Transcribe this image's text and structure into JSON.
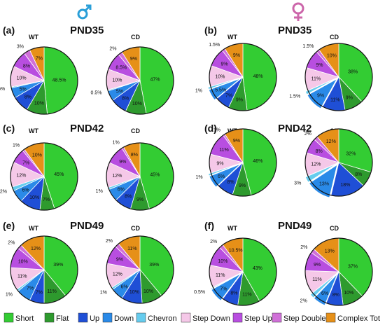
{
  "sex_symbols": {
    "male_color": "#2a9fd8",
    "female_color": "#cc66aa"
  },
  "colors": {
    "Short": "#33cc33",
    "Flat": "#2e9a2e",
    "Up": "#1f4fd6",
    "Down": "#2a8ae8",
    "Chevron": "#66ccee",
    "Step Down": "#f5c8e8",
    "Step Up": "#b84ee0",
    "Step Double": "#d070d8",
    "Complex Tot": "#e69018"
  },
  "legend": [
    "Short",
    "Flat",
    "Up",
    "Down",
    "Chevron",
    "Step Down",
    "Step Up",
    "Step Double",
    "Complex Tot"
  ],
  "chart_data": [
    {
      "type": "pie",
      "panel": "(a)",
      "title": "PND35",
      "sex": "male",
      "groups": [
        {
          "name": "WT",
          "values": [
            {
              "category": "Short",
              "value": 48.5,
              "label": "48.5%"
            },
            {
              "category": "Flat",
              "value": 10,
              "label": "10%"
            },
            {
              "category": "Up",
              "value": 8,
              "label": "8%"
            },
            {
              "category": "Down",
              "value": 5,
              "label": "5%"
            },
            {
              "category": "Chevron",
              "value": 0.5,
              "label": "0.5%"
            },
            {
              "category": "Step Down",
              "value": 10,
              "label": "10%"
            },
            {
              "category": "Step Up",
              "value": 8,
              "label": "8%"
            },
            {
              "category": "Step Double",
              "value": 3,
              "label": "3%"
            },
            {
              "category": "Complex Tot",
              "value": 7,
              "label": "7%"
            }
          ]
        },
        {
          "name": "CD",
          "values": [
            {
              "category": "Short",
              "value": 47,
              "label": "47%"
            },
            {
              "category": "Flat",
              "value": 10,
              "label": "10%"
            },
            {
              "category": "Up",
              "value": 8,
              "label": "8%"
            },
            {
              "category": "Down",
              "value": 5,
              "label": "5%"
            },
            {
              "category": "Chevron",
              "value": 0.5,
              "label": "0.5%"
            },
            {
              "category": "Step Down",
              "value": 10,
              "label": "10%"
            },
            {
              "category": "Step Up",
              "value": 8.5,
              "label": "8.5%"
            },
            {
              "category": "Step Double",
              "value": 2,
              "label": "2%"
            },
            {
              "category": "Complex Tot",
              "value": 9,
              "label": "9%"
            }
          ]
        }
      ]
    },
    {
      "type": "pie",
      "panel": "(b)",
      "title": "PND35",
      "sex": "female",
      "groups": [
        {
          "name": "WT",
          "values": [
            {
              "category": "Short",
              "value": 48,
              "label": "48%"
            },
            {
              "category": "Flat",
              "value": 9,
              "label": "9%"
            },
            {
              "category": "Up",
              "value": 7,
              "label": "7%"
            },
            {
              "category": "Down",
              "value": 5.5,
              "label": "5.5%"
            },
            {
              "category": "Chevron",
              "value": 1,
              "label": "1%"
            },
            {
              "category": "Step Down",
              "value": 10,
              "label": "10%"
            },
            {
              "category": "Step Up",
              "value": 9,
              "label": "9%"
            },
            {
              "category": "Step Double",
              "value": 1.5,
              "label": "1.5%"
            },
            {
              "category": "Complex Tot",
              "value": 9,
              "label": "9%"
            }
          ]
        },
        {
          "name": "CD",
          "values": [
            {
              "category": "Short",
              "value": 38,
              "label": "38%"
            },
            {
              "category": "Flat",
              "value": 9,
              "label": "9%"
            },
            {
              "category": "Up",
              "value": 11,
              "label": "11%"
            },
            {
              "category": "Down",
              "value": 9,
              "label": "9%"
            },
            {
              "category": "Chevron",
              "value": 1.5,
              "label": "1.5%"
            },
            {
              "category": "Step Down",
              "value": 11,
              "label": "11%"
            },
            {
              "category": "Step Up",
              "value": 9,
              "label": "9%"
            },
            {
              "category": "Step Double",
              "value": 1.5,
              "label": "1.5%"
            },
            {
              "category": "Complex Tot",
              "value": 10,
              "label": "10%"
            }
          ]
        }
      ]
    },
    {
      "type": "pie",
      "panel": "(c)",
      "title": "PND42",
      "sex": "male",
      "groups": [
        {
          "name": "WT",
          "values": [
            {
              "category": "Short",
              "value": 45,
              "label": "45%"
            },
            {
              "category": "Flat",
              "value": 7,
              "label": "7%"
            },
            {
              "category": "Up",
              "value": 10,
              "label": "10%"
            },
            {
              "category": "Down",
              "value": 6,
              "label": "6%"
            },
            {
              "category": "Chevron",
              "value": 2,
              "label": "2%"
            },
            {
              "category": "Step Down",
              "value": 12,
              "label": "12%"
            },
            {
              "category": "Step Up",
              "value": 7,
              "label": "7%"
            },
            {
              "category": "Step Double",
              "value": 1,
              "label": "1%"
            },
            {
              "category": "Complex Tot",
              "value": 10,
              "label": "10%"
            }
          ]
        },
        {
          "name": "CD",
          "values": [
            {
              "category": "Short",
              "value": 45,
              "label": "45%"
            },
            {
              "category": "Flat",
              "value": 9,
              "label": "9%"
            },
            {
              "category": "Up",
              "value": 8,
              "label": "8%"
            },
            {
              "category": "Down",
              "value": 6,
              "label": "6%"
            },
            {
              "category": "Chevron",
              "value": 1,
              "label": "1%"
            },
            {
              "category": "Step Down",
              "value": 12,
              "label": "12%"
            },
            {
              "category": "Step Up",
              "value": 9,
              "label": "9%"
            },
            {
              "category": "Step Double",
              "value": 1,
              "label": "1%"
            },
            {
              "category": "Complex Tot",
              "value": 8,
              "label": "8%"
            }
          ]
        }
      ]
    },
    {
      "type": "pie",
      "panel": "(d)",
      "title": "PND42",
      "sex": "female",
      "groups": [
        {
          "name": "WT",
          "values": [
            {
              "category": "Short",
              "value": 46,
              "label": "46%"
            },
            {
              "category": "Flat",
              "value": 9,
              "label": "9%"
            },
            {
              "category": "Up",
              "value": 8,
              "label": "8%"
            },
            {
              "category": "Down",
              "value": 6,
              "label": "6%"
            },
            {
              "category": "Chevron",
              "value": 1,
              "label": "1%"
            },
            {
              "category": "Step Down",
              "value": 9,
              "label": "9%"
            },
            {
              "category": "Step Up",
              "value": 11,
              "label": "11%"
            },
            {
              "category": "Step Double",
              "value": 1,
              "label": "1%"
            },
            {
              "category": "Complex Tot",
              "value": 9,
              "label": "9%"
            }
          ]
        },
        {
          "name": "CD",
          "values": [
            {
              "category": "Short",
              "value": 32,
              "label": "32%"
            },
            {
              "category": "Flat",
              "value": 8,
              "label": "8%"
            },
            {
              "category": "Up",
              "value": 18,
              "label": "18%"
            },
            {
              "category": "Down",
              "value": 13,
              "label": "13%"
            },
            {
              "category": "Chevron",
              "value": 3,
              "label": "3%"
            },
            {
              "category": "Step Down",
              "value": 12,
              "label": "12%"
            },
            {
              "category": "Step Up",
              "value": 8,
              "label": "8%"
            },
            {
              "category": "Step Double",
              "value": 2,
              "label": "2%"
            },
            {
              "category": "Complex Tot",
              "value": 12,
              "label": "12%"
            }
          ]
        }
      ]
    },
    {
      "type": "pie",
      "panel": "(e)",
      "title": "PND49",
      "sex": "male",
      "groups": [
        {
          "name": "WT",
          "values": [
            {
              "category": "Short",
              "value": 39,
              "label": "39%"
            },
            {
              "category": "Flat",
              "value": 11,
              "label": "11%"
            },
            {
              "category": "Up",
              "value": 7,
              "label": "7%"
            },
            {
              "category": "Down",
              "value": 7,
              "label": "7%"
            },
            {
              "category": "Chevron",
              "value": 1,
              "label": "1%"
            },
            {
              "category": "Step Down",
              "value": 11,
              "label": "11%"
            },
            {
              "category": "Step Up",
              "value": 10,
              "label": "10%"
            },
            {
              "category": "Step Double",
              "value": 2,
              "label": "2%"
            },
            {
              "category": "Complex Tot",
              "value": 12,
              "label": "12%"
            }
          ]
        },
        {
          "name": "CD",
          "values": [
            {
              "category": "Short",
              "value": 39,
              "label": "39%"
            },
            {
              "category": "Flat",
              "value": 10,
              "label": "10%"
            },
            {
              "category": "Up",
              "value": 10,
              "label": "10%"
            },
            {
              "category": "Down",
              "value": 6,
              "label": "6%"
            },
            {
              "category": "Chevron",
              "value": 1,
              "label": "1%"
            },
            {
              "category": "Step Down",
              "value": 12,
              "label": "12%"
            },
            {
              "category": "Step Up",
              "value": 9,
              "label": "9%"
            },
            {
              "category": "Step Double",
              "value": 2,
              "label": "2%"
            },
            {
              "category": "Complex Tot",
              "value": 11,
              "label": "11%"
            }
          ]
        }
      ]
    },
    {
      "type": "pie",
      "panel": "(f)",
      "title": "PND49",
      "sex": "female",
      "groups": [
        {
          "name": "WT",
          "values": [
            {
              "category": "Short",
              "value": 43,
              "label": "43%"
            },
            {
              "category": "Flat",
              "value": 11,
              "label": "11%"
            },
            {
              "category": "Up",
              "value": 8,
              "label": "8%"
            },
            {
              "category": "Down",
              "value": 7,
              "label": "7%"
            },
            {
              "category": "Chevron",
              "value": 0.5,
              "label": "0.5%"
            },
            {
              "category": "Step Down",
              "value": 11,
              "label": "11%"
            },
            {
              "category": "Step Up",
              "value": 10,
              "label": "10%"
            },
            {
              "category": "Step Double",
              "value": 2,
              "label": "2%"
            },
            {
              "category": "Complex Tot",
              "value": 10.5,
              "label": "10.5%"
            }
          ]
        },
        {
          "name": "CD",
          "values": [
            {
              "category": "Short",
              "value": 37,
              "label": "37%"
            },
            {
              "category": "Flat",
              "value": 10,
              "label": "10%"
            },
            {
              "category": "Up",
              "value": 8,
              "label": "8%"
            },
            {
              "category": "Down",
              "value": 6,
              "label": "6%"
            },
            {
              "category": "Chevron",
              "value": 2,
              "label": "2%"
            },
            {
              "category": "Step Down",
              "value": 11,
              "label": "11%"
            },
            {
              "category": "Step Up",
              "value": 9,
              "label": "9%"
            },
            {
              "category": "Step Double",
              "value": 2,
              "label": "2%"
            },
            {
              "category": "Complex Tot",
              "value": 13,
              "label": "13%"
            }
          ]
        }
      ]
    }
  ]
}
